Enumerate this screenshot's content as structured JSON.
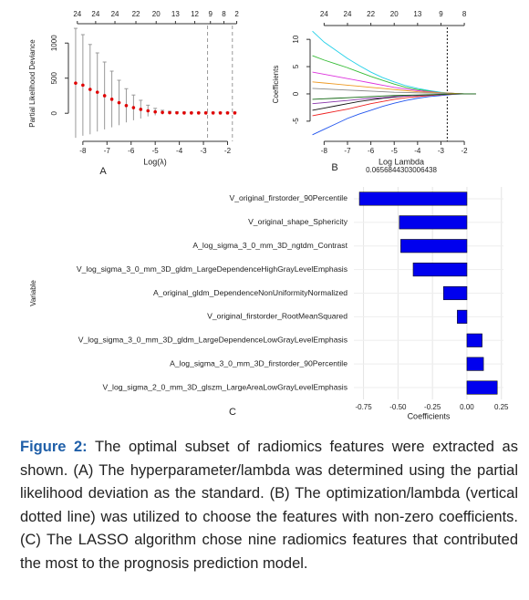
{
  "chart_data": [
    {
      "type": "errorbar",
      "panel_label": "A",
      "xlabel": "Log(λ)",
      "ylabel": "Partial Likelihood Deviance",
      "x": [
        -8.3,
        -8.0,
        -7.7,
        -7.4,
        -7.1,
        -6.8,
        -6.5,
        -6.2,
        -5.9,
        -5.6,
        -5.3,
        -5.0,
        -4.7,
        -4.4,
        -4.1,
        -3.8,
        -3.5,
        -3.2,
        -2.9,
        -2.6,
        -2.3,
        -2.0,
        -1.7
      ],
      "values": [
        430,
        400,
        340,
        300,
        250,
        200,
        150,
        110,
        80,
        55,
        35,
        20,
        12,
        8,
        6,
        5,
        5,
        5,
        5,
        5,
        5,
        5,
        5
      ],
      "errors": [
        780,
        720,
        640,
        560,
        480,
        400,
        320,
        240,
        180,
        130,
        80,
        50,
        30,
        20,
        15,
        12,
        10,
        10,
        10,
        10,
        10,
        10,
        10
      ],
      "color": "#e00000",
      "error_color": "#999999",
      "xlim": [
        -8.6,
        -1.3
      ],
      "xticks": [
        -8,
        -7,
        -6,
        -5,
        -4,
        -3,
        -2
      ],
      "ylim": [
        -400,
        1250
      ],
      "yticks": [
        0,
        500,
        1000
      ],
      "top_x": [
        -8.23,
        -7.47,
        -6.67,
        -5.8,
        -4.96,
        -4.16,
        -3.36,
        -2.71,
        -2.15,
        -1.62
      ],
      "top_labels": [
        24,
        24,
        24,
        22,
        20,
        13,
        12,
        9,
        8,
        2
      ],
      "vlines": [
        -2.83,
        -1.8
      ]
    },
    {
      "type": "line",
      "panel_label": "B",
      "xlabel": "Log Lambda",
      "lambda_label": "0.0656844303006438",
      "ylabel": "Coefficients",
      "x": [
        -8.5,
        -8,
        -7.5,
        -7,
        -6.5,
        -6,
        -5.5,
        -5,
        -4.5,
        -4,
        -3.5,
        -3,
        -2.5,
        -2,
        -1.5
      ],
      "series": [
        {
          "color": "#22d0e8",
          "values": [
            11.5,
            9.5,
            8,
            6.5,
            5.2,
            4,
            3,
            2.2,
            1.5,
            1,
            0.6,
            0.3,
            0.1,
            0,
            0
          ]
        },
        {
          "color": "#33bb33",
          "values": [
            7,
            6.2,
            5.5,
            4.8,
            4,
            3.2,
            2.5,
            1.8,
            1.2,
            0.8,
            0.5,
            0.2,
            0.1,
            0,
            0
          ]
        },
        {
          "color": "#2255ee",
          "values": [
            -7.5,
            -6.5,
            -5.5,
            -4.5,
            -3.7,
            -3,
            -2.3,
            -1.7,
            -1.2,
            -0.8,
            -0.5,
            -0.3,
            -0.1,
            0,
            0
          ]
        },
        {
          "color": "#dd33dd",
          "values": [
            4,
            3.6,
            3.2,
            2.8,
            2.4,
            2,
            1.6,
            1.2,
            0.9,
            0.6,
            0.4,
            0.2,
            0.1,
            0,
            0
          ]
        },
        {
          "color": "#ee2222",
          "values": [
            -4,
            -3.6,
            -3.2,
            -2.8,
            -2.3,
            -1.8,
            -1.4,
            -1,
            -0.7,
            -0.5,
            -0.3,
            -0.15,
            -0.05,
            0,
            0
          ]
        },
        {
          "color": "#111111",
          "values": [
            -3,
            -2.6,
            -2.2,
            -1.8,
            -1.4,
            -1.1,
            -0.8,
            -0.6,
            -0.4,
            -0.3,
            -0.2,
            -0.1,
            0,
            0,
            0
          ]
        },
        {
          "color": "#ee9922",
          "values": [
            2.2,
            2,
            1.8,
            1.6,
            1.4,
            1.2,
            1,
            0.8,
            0.6,
            0.4,
            0.3,
            0.2,
            0.1,
            0,
            0
          ]
        },
        {
          "color": "#8833aa",
          "values": [
            -1.8,
            -1.6,
            -1.4,
            -1.2,
            -1,
            -0.8,
            -0.7,
            -0.5,
            -0.4,
            -0.3,
            -0.2,
            -0.1,
            0,
            0,
            0
          ]
        },
        {
          "color": "#888888",
          "values": [
            1,
            0.9,
            0.8,
            0.7,
            0.6,
            0.5,
            0.4,
            0.3,
            0.25,
            0.2,
            0.15,
            0.1,
            0,
            0,
            0
          ]
        },
        {
          "color": "#116611",
          "values": [
            -1,
            -0.9,
            -0.8,
            -0.7,
            -0.6,
            -0.5,
            -0.4,
            -0.3,
            -0.25,
            -0.2,
            -0.15,
            -0.1,
            0,
            0,
            0
          ]
        }
      ],
      "xlim": [
        -8.6,
        -1.3
      ],
      "xticks": [
        -8,
        -7,
        -6,
        -5,
        -4,
        -3,
        -2
      ],
      "ylim": [
        -8.7,
        12.2
      ],
      "yticks": [
        -5,
        0,
        5,
        10
      ],
      "top_x": [
        -8,
        -7,
        -6,
        -5,
        -4,
        -3,
        -2
      ],
      "top_labels": [
        24,
        24,
        22,
        20,
        13,
        9,
        8
      ],
      "vlines": [
        -2.73
      ]
    },
    {
      "type": "bar",
      "orientation": "horizontal",
      "panel_label": "C",
      "xlabel": "Coefficients",
      "ylabel": "Variable",
      "categories": [
        "V_original_firstorder_90Percentile",
        "V_original_shape_Sphericity",
        "A_log_sigma_3_0_mm_3D_ngtdm_Contrast",
        "V_log_sigma_3_0_mm_3D_gldm_LargeDependenceHighGrayLevelEmphasis",
        "A_original_gldm_DependenceNonUniformityNormalized",
        "V_original_firstorder_RootMeanSquared",
        "V_log_sigma_3_0_mm_3D_gldm_LargeDependenceLowGrayLevelEmphasis",
        "A_log_sigma_3_0_mm_3D_firstorder_90Percentile",
        "V_log_sigma_2_0_mm_3D_glszm_LargeAreaLowGrayLevelEmphasis"
      ],
      "values": [
        -0.78,
        -0.49,
        -0.48,
        -0.39,
        -0.17,
        -0.07,
        0.11,
        0.12,
        0.22
      ],
      "color": "#0000ee",
      "xlim": [
        -0.82,
        0.265
      ],
      "xticks": [
        {
          "value": -0.75,
          "label": "-0.75"
        },
        {
          "value": -0.5,
          "label": "-0.50"
        },
        {
          "value": -0.25,
          "label": "-0.25"
        },
        {
          "value": 0,
          "label": "0.00"
        },
        {
          "value": 0.25,
          "label": "0.25"
        }
      ],
      "grid": true
    }
  ],
  "caption": {
    "label": "Figure 2:",
    "text": "The optimal subset of radiomics features were extracted as shown. (A) The hyperparameter/lambda was determined using the partial likelihood deviation as the standard. (B) The optimization/lambda (vertical dotted line) was utilized to choose the features with non-zero coefficients. (C) The LASSO algorithm chose nine radiomics features that contributed the most to the prognosis prediction model."
  }
}
